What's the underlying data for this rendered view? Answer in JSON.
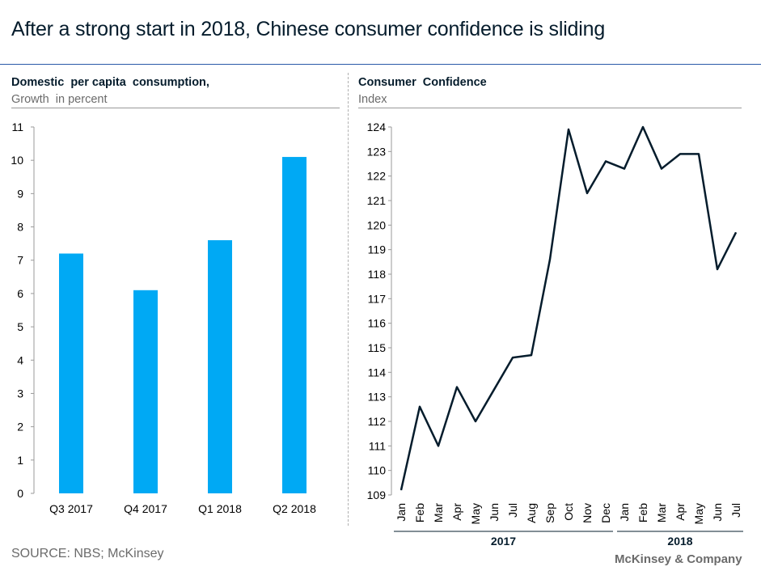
{
  "title": "After a strong start in 2018, Chinese consumer confidence is sliding",
  "colors": {
    "bar": "#00a9f4",
    "line": "#051c2c",
    "text_dark": "#051c2c",
    "text_grey": "#6b6b6b"
  },
  "chart_data": [
    {
      "type": "bar",
      "title": "Domestic  per capita  consumption,",
      "subtitle": "Growth  in percent",
      "categories": [
        "Q3  2017",
        "Q4  2017",
        "Q1  2018",
        "Q2  2018"
      ],
      "values": [
        7.2,
        6.1,
        7.6,
        10.1
      ],
      "ylim": [
        0,
        11
      ],
      "yticks": [
        "0",
        "1",
        "2",
        "3",
        "4",
        "5",
        "6",
        "7",
        "8",
        "9",
        "10",
        "11"
      ],
      "xlabel": "",
      "ylabel": "",
      "grid": false
    },
    {
      "type": "line",
      "title": "Consumer  Confidence",
      "subtitle": "Index",
      "x": [
        "Jan",
        "Feb",
        "Mar",
        "Apr",
        "May",
        "Jun",
        "Jul",
        "Aug",
        "Sep",
        "Oct",
        "Nov",
        "Dec",
        "Jan",
        "Feb",
        "Mar",
        "Apr",
        "May",
        "Jun",
        "Jul"
      ],
      "values": [
        109.2,
        112.6,
        111.0,
        113.4,
        112.0,
        113.3,
        114.6,
        114.7,
        118.6,
        123.9,
        121.3,
        122.6,
        122.3,
        124.0,
        122.3,
        122.9,
        122.9,
        118.2,
        119.7
      ],
      "year_groups": [
        {
          "label": "2017",
          "count": 12
        },
        {
          "label": "2018",
          "count": 7
        }
      ],
      "ylim": [
        109,
        124
      ],
      "yticks": [
        "109",
        "110",
        "111",
        "112",
        "113",
        "114",
        "115",
        "116",
        "117",
        "118",
        "119",
        "120",
        "121",
        "122",
        "123",
        "124"
      ],
      "xlabel": "",
      "ylabel": "",
      "grid": false
    }
  ],
  "footer": {
    "source": "SOURCE: NBS; McKinsey",
    "brand": "McKinsey & Company"
  }
}
